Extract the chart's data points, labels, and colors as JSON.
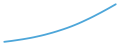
{
  "x": [
    0,
    1,
    2,
    3,
    4,
    5,
    6,
    7,
    8,
    9,
    10,
    11,
    12,
    13,
    14,
    15,
    16,
    17,
    18,
    19,
    20,
    21,
    22,
    23,
    24,
    25,
    26,
    27,
    28,
    29,
    30
  ],
  "y": [
    1.0,
    1.5,
    2.0,
    2.6,
    3.2,
    3.8,
    4.5,
    5.2,
    6.0,
    6.9,
    7.8,
    8.8,
    9.9,
    11.0,
    12.2,
    13.5,
    14.8,
    16.2,
    17.7,
    19.3,
    21.0,
    22.8,
    24.7,
    26.6,
    28.6,
    30.7,
    32.8,
    35.0,
    37.2,
    39.5,
    41.8
  ],
  "line_color": "#4da6d9",
  "line_width": 1.3,
  "background_color": "#ffffff",
  "ylim": [
    0,
    44
  ],
  "xlim": [
    -0.5,
    30.5
  ]
}
